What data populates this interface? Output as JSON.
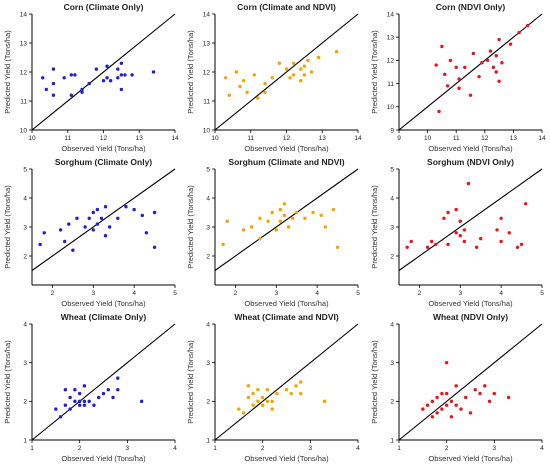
{
  "colors": {
    "climate": "#1f1fd6",
    "combined": "#f5a300",
    "ndvi": "#e8141e",
    "line": "#000000",
    "axis": "#000000"
  },
  "chart_data": [
    {
      "type": "scatter",
      "title": "Corn (Climate Only)",
      "xlabel": "Observed Yield (Tons/ha)",
      "ylabel": "Predicted Yield (Tons/ha)",
      "xlim": [
        10,
        14
      ],
      "ylim": [
        10,
        14
      ],
      "xticks": [
        "10",
        "11",
        "12",
        "13",
        "14"
      ],
      "yticks": [
        "10",
        "11",
        "12",
        "13",
        "14"
      ],
      "color": "climate",
      "points": [
        [
          10.3,
          11.8
        ],
        [
          10.4,
          11.4
        ],
        [
          10.6,
          12.1
        ],
        [
          10.6,
          11.6
        ],
        [
          10.6,
          11.2
        ],
        [
          10.9,
          11.8
        ],
        [
          11.1,
          11.9
        ],
        [
          11.1,
          11.2
        ],
        [
          11.2,
          11.9
        ],
        [
          11.4,
          11.3
        ],
        [
          11.4,
          11.4
        ],
        [
          11.6,
          11.6
        ],
        [
          11.8,
          12.1
        ],
        [
          12.0,
          11.7
        ],
        [
          12.1,
          12.2
        ],
        [
          12.1,
          11.8
        ],
        [
          12.2,
          11.7
        ],
        [
          12.4,
          12.1
        ],
        [
          12.4,
          11.8
        ],
        [
          12.5,
          11.9
        ],
        [
          12.5,
          11.4
        ],
        [
          12.5,
          12.3
        ],
        [
          12.6,
          11.9
        ],
        [
          12.8,
          11.9
        ],
        [
          13.4,
          12.0
        ]
      ]
    },
    {
      "type": "scatter",
      "title": "Corn (Climate and NDVI)",
      "xlabel": "Observed Yield (Tons/ha)",
      "ylabel": "Predicted Yield (Tons/ha)",
      "xlim": [
        10,
        14
      ],
      "ylim": [
        10,
        14
      ],
      "xticks": [
        "10",
        "11",
        "12",
        "13",
        "14"
      ],
      "yticks": [
        "10",
        "11",
        "12",
        "13",
        "14"
      ],
      "color": "combined",
      "points": [
        [
          10.3,
          11.8
        ],
        [
          10.4,
          11.2
        ],
        [
          10.6,
          12.0
        ],
        [
          10.7,
          11.5
        ],
        [
          10.8,
          11.7
        ],
        [
          10.9,
          11.3
        ],
        [
          11.1,
          11.9
        ],
        [
          11.2,
          11.1
        ],
        [
          11.4,
          11.6
        ],
        [
          11.4,
          11.3
        ],
        [
          11.6,
          11.8
        ],
        [
          11.8,
          12.3
        ],
        [
          12.0,
          12.1
        ],
        [
          12.1,
          11.8
        ],
        [
          12.2,
          12.3
        ],
        [
          12.2,
          11.9
        ],
        [
          12.4,
          12.1
        ],
        [
          12.4,
          11.7
        ],
        [
          12.5,
          12.2
        ],
        [
          12.5,
          11.9
        ],
        [
          12.6,
          12.4
        ],
        [
          12.7,
          12.0
        ],
        [
          12.9,
          12.5
        ],
        [
          13.4,
          12.7
        ]
      ]
    },
    {
      "type": "scatter",
      "title": "Corn (NDVI Only)",
      "xlabel": "Observed Yield (Tons/ha)",
      "ylabel": "Predicted Yield (Tons/ha)",
      "xlim": [
        9,
        14
      ],
      "ylim": [
        9,
        14
      ],
      "xticks": [
        "9",
        "10",
        "11",
        "12",
        "13",
        "14"
      ],
      "yticks": [
        "9",
        "10",
        "11",
        "12",
        "13",
        "14"
      ],
      "color": "ndvi",
      "points": [
        [
          10.3,
          11.8
        ],
        [
          10.5,
          12.6
        ],
        [
          10.6,
          11.4
        ],
        [
          10.7,
          10.9
        ],
        [
          10.8,
          12.0
        ],
        [
          11.0,
          11.7
        ],
        [
          11.1,
          11.2
        ],
        [
          11.1,
          10.8
        ],
        [
          11.3,
          11.7
        ],
        [
          11.5,
          10.5
        ],
        [
          11.6,
          12.3
        ],
        [
          11.8,
          11.3
        ],
        [
          11.9,
          11.9
        ],
        [
          12.1,
          12.0
        ],
        [
          12.2,
          12.4
        ],
        [
          12.3,
          11.7
        ],
        [
          12.4,
          12.2
        ],
        [
          12.4,
          11.5
        ],
        [
          12.5,
          11.1
        ],
        [
          12.5,
          12.9
        ],
        [
          12.6,
          11.9
        ],
        [
          12.9,
          12.7
        ],
        [
          13.2,
          13.2
        ],
        [
          13.5,
          13.5
        ],
        [
          10.4,
          9.8
        ]
      ]
    },
    {
      "type": "scatter",
      "title": "Sorghum (Climate Only)",
      "xlabel": "Observed Yield (Tons/ha)",
      "ylabel": "Predicted Yield (Tons/ha)",
      "xlim": [
        1.5,
        5
      ],
      "ylim": [
        1,
        5
      ],
      "xticks": [
        "2",
        "3",
        "4",
        "5"
      ],
      "yticks": [
        "2",
        "3",
        "4",
        "5"
      ],
      "color": "climate",
      "points": [
        [
          1.7,
          2.4
        ],
        [
          1.8,
          2.8
        ],
        [
          2.2,
          2.9
        ],
        [
          2.3,
          2.5
        ],
        [
          2.4,
          3.1
        ],
        [
          2.5,
          2.2
        ],
        [
          2.6,
          3.3
        ],
        [
          2.8,
          3.0
        ],
        [
          2.9,
          3.3
        ],
        [
          3.0,
          2.9
        ],
        [
          3.0,
          3.5
        ],
        [
          3.1,
          3.1
        ],
        [
          3.1,
          3.6
        ],
        [
          3.2,
          3.3
        ],
        [
          3.3,
          3.7
        ],
        [
          3.3,
          2.7
        ],
        [
          3.4,
          3.0
        ],
        [
          3.6,
          3.3
        ],
        [
          3.8,
          3.7
        ],
        [
          4.0,
          3.6
        ],
        [
          4.2,
          3.4
        ],
        [
          4.3,
          2.8
        ],
        [
          4.5,
          3.5
        ],
        [
          4.5,
          2.3
        ]
      ]
    },
    {
      "type": "scatter",
      "title": "Sorghum (Climate and NDVI)",
      "xlabel": "Observed Yield (Tons/ha)",
      "ylabel": "Predicted Yield (Tons/ha)",
      "xlim": [
        1.5,
        5
      ],
      "ylim": [
        1,
        5
      ],
      "xticks": [
        "2",
        "3",
        "4",
        "5"
      ],
      "yticks": [
        "2",
        "3",
        "4",
        "5"
      ],
      "color": "combined",
      "points": [
        [
          1.7,
          2.4
        ],
        [
          1.8,
          3.2
        ],
        [
          2.2,
          2.9
        ],
        [
          2.4,
          3.0
        ],
        [
          2.6,
          3.3
        ],
        [
          2.6,
          2.6
        ],
        [
          2.8,
          3.2
        ],
        [
          2.9,
          3.5
        ],
        [
          3.0,
          2.9
        ],
        [
          3.1,
          3.6
        ],
        [
          3.1,
          3.2
        ],
        [
          3.2,
          3.8
        ],
        [
          3.2,
          3.4
        ],
        [
          3.3,
          3.0
        ],
        [
          3.4,
          3.3
        ],
        [
          3.5,
          3.5
        ],
        [
          3.7,
          3.3
        ],
        [
          3.9,
          3.5
        ],
        [
          4.1,
          3.4
        ],
        [
          4.2,
          3.0
        ],
        [
          4.4,
          3.6
        ],
        [
          4.5,
          2.3
        ]
      ]
    },
    {
      "type": "scatter",
      "title": "Sorghum (NDVI Only)",
      "xlabel": "Observed Yield (Tons/ha)",
      "ylabel": "Predicted Yield (Tons/ha)",
      "xlim": [
        1.5,
        5
      ],
      "ylim": [
        1,
        5
      ],
      "xticks": [
        "2",
        "3",
        "4",
        "5"
      ],
      "yticks": [
        "2",
        "3",
        "4",
        "5"
      ],
      "color": "ndvi",
      "points": [
        [
          1.7,
          2.3
        ],
        [
          1.8,
          2.5
        ],
        [
          2.2,
          2.3
        ],
        [
          2.3,
          2.5
        ],
        [
          2.4,
          2.4
        ],
        [
          2.6,
          3.3
        ],
        [
          2.7,
          3.5
        ],
        [
          2.7,
          2.4
        ],
        [
          2.9,
          3.6
        ],
        [
          2.9,
          2.8
        ],
        [
          3.0,
          2.7
        ],
        [
          3.0,
          3.2
        ],
        [
          3.1,
          2.9
        ],
        [
          3.1,
          2.5
        ],
        [
          3.2,
          4.5
        ],
        [
          3.4,
          2.3
        ],
        [
          3.5,
          2.6
        ],
        [
          3.9,
          2.9
        ],
        [
          4.0,
          3.3
        ],
        [
          4.0,
          2.5
        ],
        [
          4.2,
          2.8
        ],
        [
          4.4,
          2.3
        ],
        [
          4.5,
          2.4
        ],
        [
          4.6,
          3.8
        ]
      ]
    },
    {
      "type": "scatter",
      "title": "Wheat (Climate Only)",
      "xlabel": "Observed Yield (Tons/ha)",
      "ylabel": "Predicted Yield (Tons/ha)",
      "xlim": [
        1,
        4
      ],
      "ylim": [
        1,
        4
      ],
      "xticks": [
        "1",
        "2",
        "3",
        "4"
      ],
      "yticks": [
        "1",
        "2",
        "3",
        "4"
      ],
      "color": "climate",
      "points": [
        [
          1.5,
          1.8
        ],
        [
          1.6,
          1.6
        ],
        [
          1.7,
          1.9
        ],
        [
          1.7,
          2.3
        ],
        [
          1.8,
          2.1
        ],
        [
          1.8,
          1.8
        ],
        [
          1.9,
          2.0
        ],
        [
          1.9,
          2.3
        ],
        [
          2.0,
          2.0
        ],
        [
          2.0,
          1.9
        ],
        [
          2.0,
          2.2
        ],
        [
          2.1,
          1.9
        ],
        [
          2.1,
          2.0
        ],
        [
          2.1,
          2.4
        ],
        [
          2.2,
          2.0
        ],
        [
          2.3,
          1.9
        ],
        [
          2.4,
          2.1
        ],
        [
          2.5,
          2.2
        ],
        [
          2.6,
          2.3
        ],
        [
          2.7,
          2.1
        ],
        [
          2.8,
          2.3
        ],
        [
          2.8,
          2.6
        ],
        [
          3.3,
          2.0
        ]
      ]
    },
    {
      "type": "scatter",
      "title": "Wheat (Climate and NDVI)",
      "xlabel": "Observed Yield (Tons/ha)",
      "ylabel": "Predicted Yield (Tons/ha)",
      "xlim": [
        1,
        4
      ],
      "ylim": [
        1,
        4
      ],
      "xticks": [
        "1",
        "2",
        "3",
        "4"
      ],
      "yticks": [
        "1",
        "2",
        "3",
        "4"
      ],
      "color": "combined",
      "points": [
        [
          1.5,
          1.8
        ],
        [
          1.6,
          1.7
        ],
        [
          1.7,
          2.1
        ],
        [
          1.7,
          2.4
        ],
        [
          1.8,
          2.2
        ],
        [
          1.8,
          1.9
        ],
        [
          1.9,
          2.0
        ],
        [
          1.9,
          2.3
        ],
        [
          2.0,
          2.1
        ],
        [
          2.0,
          1.9
        ],
        [
          2.1,
          2.0
        ],
        [
          2.1,
          2.3
        ],
        [
          2.2,
          2.0
        ],
        [
          2.2,
          1.8
        ],
        [
          2.3,
          2.2
        ],
        [
          2.5,
          2.3
        ],
        [
          2.6,
          2.2
        ],
        [
          2.7,
          2.4
        ],
        [
          2.8,
          2.5
        ],
        [
          2.8,
          2.2
        ],
        [
          3.3,
          2.0
        ]
      ]
    },
    {
      "type": "scatter",
      "title": "Wheat (NDVI Only)",
      "xlabel": "Observed Yield (Tons/ha)",
      "ylabel": "Predicted Yield (Tons/ha)",
      "xlim": [
        1,
        4
      ],
      "ylim": [
        1,
        4
      ],
      "xticks": [
        "1",
        "2",
        "3",
        "4"
      ],
      "yticks": [
        "1",
        "2",
        "3",
        "4"
      ],
      "color": "ndvi",
      "points": [
        [
          1.5,
          1.8
        ],
        [
          1.6,
          1.9
        ],
        [
          1.7,
          1.6
        ],
        [
          1.7,
          2.0
        ],
        [
          1.8,
          2.1
        ],
        [
          1.8,
          1.7
        ],
        [
          1.9,
          2.2
        ],
        [
          1.9,
          1.8
        ],
        [
          2.0,
          3.0
        ],
        [
          2.0,
          1.9
        ],
        [
          2.0,
          2.2
        ],
        [
          2.1,
          2.0
        ],
        [
          2.1,
          1.6
        ],
        [
          2.2,
          1.9
        ],
        [
          2.2,
          2.4
        ],
        [
          2.3,
          1.8
        ],
        [
          2.4,
          2.1
        ],
        [
          2.5,
          1.7
        ],
        [
          2.6,
          2.3
        ],
        [
          2.7,
          2.2
        ],
        [
          2.8,
          2.4
        ],
        [
          2.9,
          2.0
        ],
        [
          3.0,
          2.2
        ],
        [
          3.3,
          2.1
        ]
      ]
    }
  ]
}
